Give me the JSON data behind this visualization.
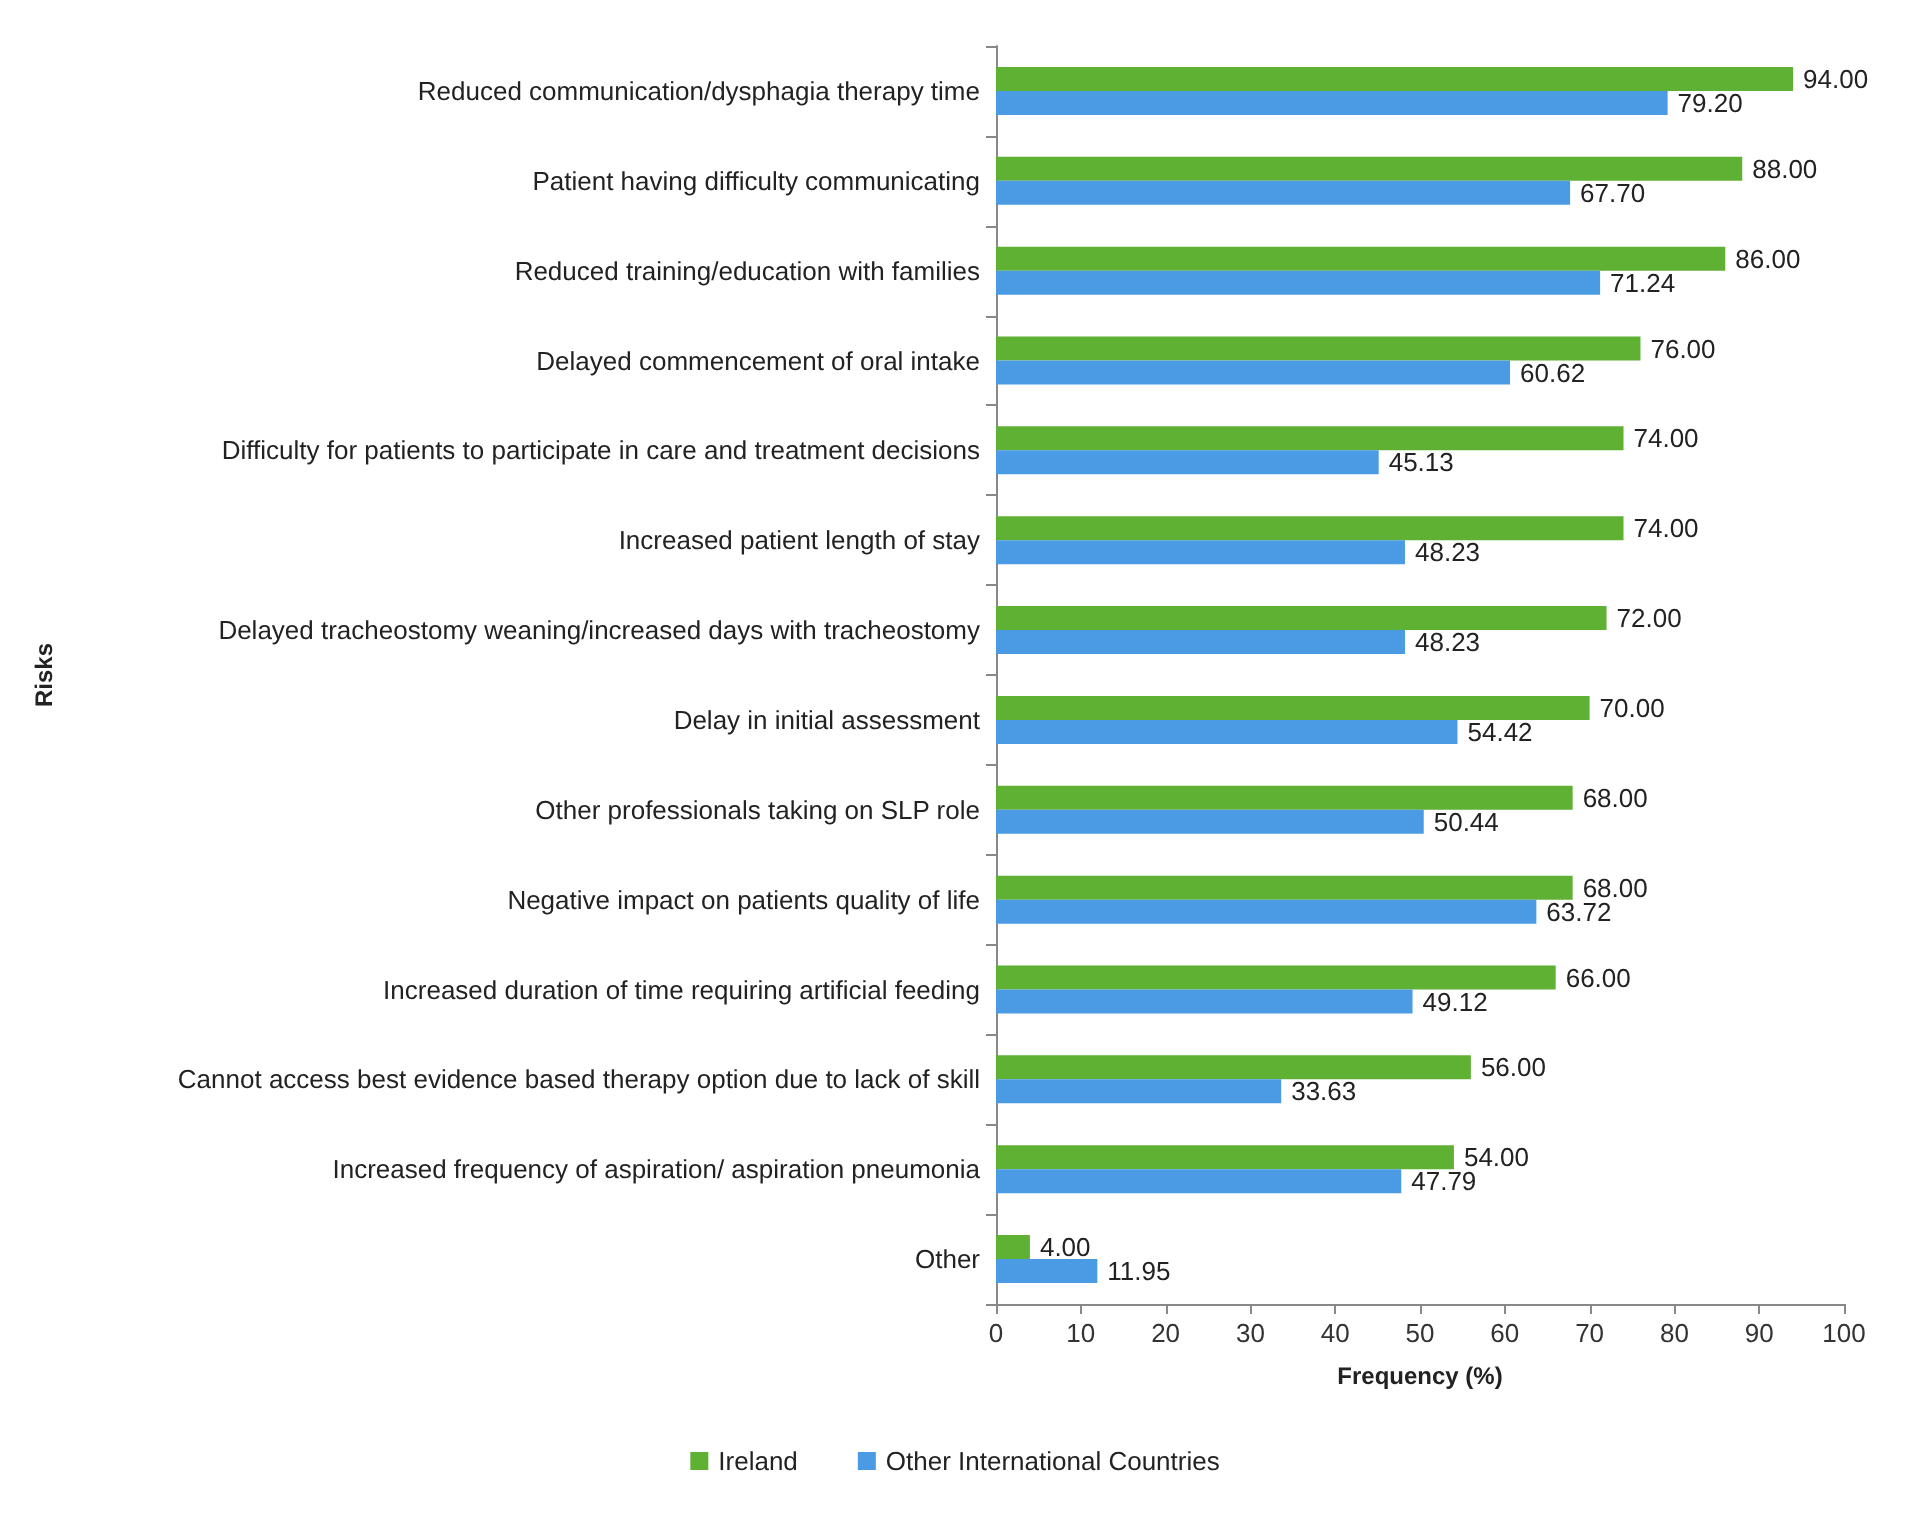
{
  "chart_data": {
    "type": "bar",
    "orientation": "horizontal",
    "xlabel": "Frequency (%)",
    "ylabel": "Risks",
    "categories": [
      "Reduced communication/dysphagia therapy time",
      "Patient having difficulty communicating",
      "Reduced training/education with families",
      "Delayed commencement of oral intake",
      "Difficulty for patients to participate in care and treatment decisions",
      "Increased patient length of stay",
      "Delayed tracheostomy weaning/increased days with tracheostomy",
      "Delay in initial assessment",
      "Other professionals taking on SLP role",
      "Negative impact on patients quality of life",
      "Increased duration of time requiring artificial feeding",
      "Cannot access best evidence based therapy option due to lack of skill",
      "Increased frequency of aspiration/ aspiration pneumonia",
      "Other"
    ],
    "series": [
      {
        "name": "Ireland",
        "color": "#5fb134",
        "values": [
          94,
          88,
          86,
          76,
          74,
          74,
          72,
          70,
          68,
          68,
          66,
          56,
          54,
          4
        ],
        "value_labels": [
          "94.00",
          "88.00",
          "86.00",
          "76.00",
          "74.00",
          "74.00",
          "72.00",
          "70.00",
          "68.00",
          "68.00",
          "66.00",
          "56.00",
          "54.00",
          "4.00"
        ]
      },
      {
        "name": "Other International Countries",
        "color": "#4a9be3",
        "values": [
          79.2,
          67.7,
          71.24,
          60.62,
          45.13,
          48.23,
          48.23,
          54.42,
          50.44,
          63.72,
          49.12,
          33.63,
          47.79,
          11.95
        ],
        "value_labels": [
          "79.20",
          "67.70",
          "71.24",
          "60.62",
          "45.13",
          "48.23",
          "48.23",
          "54.42",
          "50.44",
          "63.72",
          "49.12",
          "33.63",
          "47.79",
          "11.95"
        ]
      }
    ],
    "xlim": [
      0,
      100
    ],
    "xticks": [
      0,
      10,
      20,
      30,
      40,
      50,
      60,
      70,
      80,
      90,
      100
    ],
    "grid": false,
    "legend": "bottom"
  }
}
